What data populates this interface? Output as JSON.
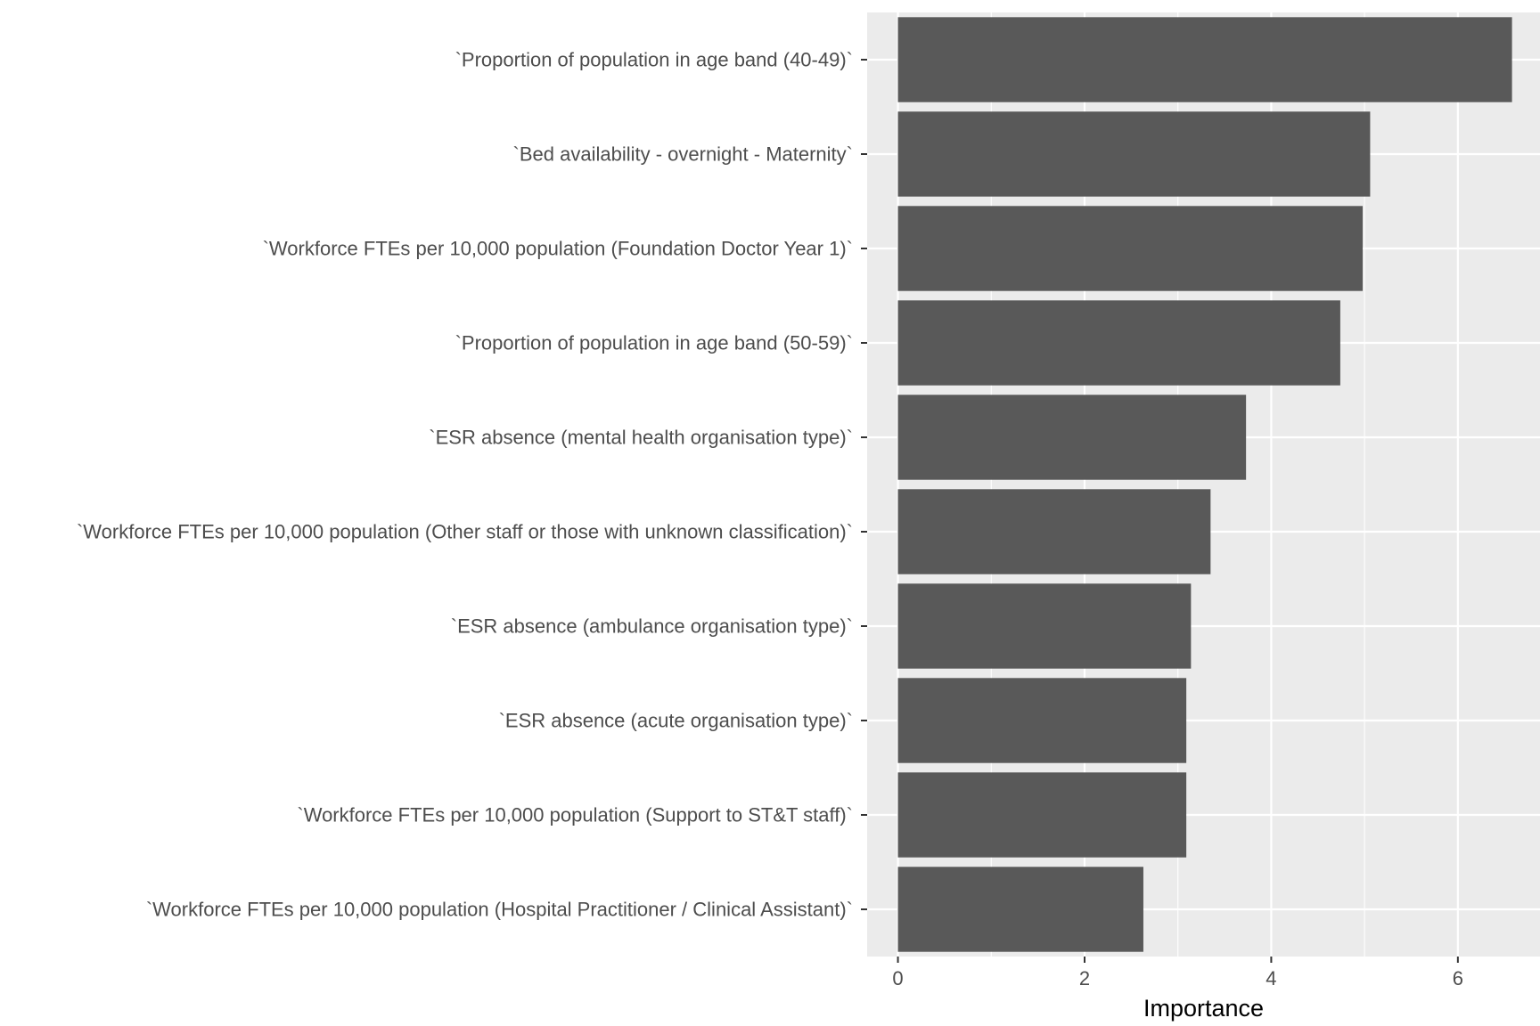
{
  "chart_data": {
    "type": "bar",
    "orientation": "horizontal",
    "xlabel": "Importance",
    "ylabel": "",
    "xlim": [
      -0.33,
      6.88
    ],
    "x_ticks": [
      0,
      2,
      4,
      6
    ],
    "x_tick_labels": [
      "0",
      "2",
      "4",
      "6"
    ],
    "x_minor_gridlines": [
      1,
      3,
      5
    ],
    "grid": true,
    "legend": "none",
    "categories": [
      "`Proportion of population in age band (40-49)`",
      "`Bed availability - overnight - Maternity`",
      "`Workforce FTEs per 10,000 population (Foundation Doctor Year 1)`",
      "`Proportion of population in age band (50-59)`",
      "`ESR absence (mental health organisation type)`",
      "`Workforce FTEs per 10,000 population (Other staff or those with unknown classification)`",
      "`ESR absence (ambulance organisation type)`",
      "`ESR absence (acute organisation type)`",
      "`Workforce FTEs per 10,000 population (Support to ST&T staff)`",
      "`Workforce FTEs per 10,000 population (Hospital Practitioner / Clinical Assistant)`"
    ],
    "values": [
      6.58,
      5.06,
      4.98,
      4.74,
      3.73,
      3.35,
      3.14,
      3.09,
      3.09,
      2.63
    ]
  },
  "colors": {
    "panel_background": "#ebebeb",
    "gridline": "#ffffff",
    "bar_fill": "#595959",
    "tick_mark": "#333333",
    "label_text": "#4d4d4d",
    "title_text": "#000000"
  }
}
